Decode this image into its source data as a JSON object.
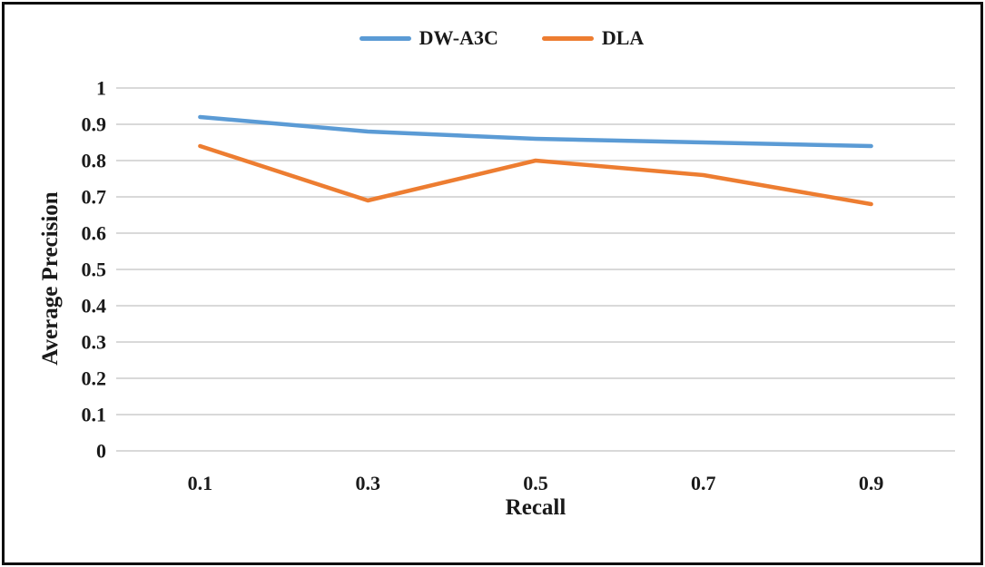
{
  "figure": {
    "background": "#FFFFFF",
    "border_color": "#0F0F0F"
  },
  "chart_data": {
    "type": "line",
    "categories": [
      "0.1",
      "0.3",
      "0.5",
      "0.7",
      "0.9"
    ],
    "series": [
      {
        "name": "DW-A3C",
        "color": "#5B9BD5",
        "values": [
          0.92,
          0.88,
          0.86,
          0.85,
          0.84
        ]
      },
      {
        "name": "DLA",
        "color": "#ED7D31",
        "values": [
          0.84,
          0.69,
          0.8,
          0.76,
          0.68
        ]
      }
    ],
    "xlabel": "Recall",
    "ylabel": "Average Precision",
    "ylim": [
      0,
      1
    ],
    "yticks": [
      "0",
      "0.1",
      "0.2",
      "0.3",
      "0.4",
      "0.5",
      "0.6",
      "0.7",
      "0.8",
      "0.9",
      "1"
    ],
    "grid": "horizontal",
    "gridline_color": "#D9D9D9",
    "text_color": "#1A1A1A",
    "legend_position": "top-center",
    "line_width": 4.5
  }
}
